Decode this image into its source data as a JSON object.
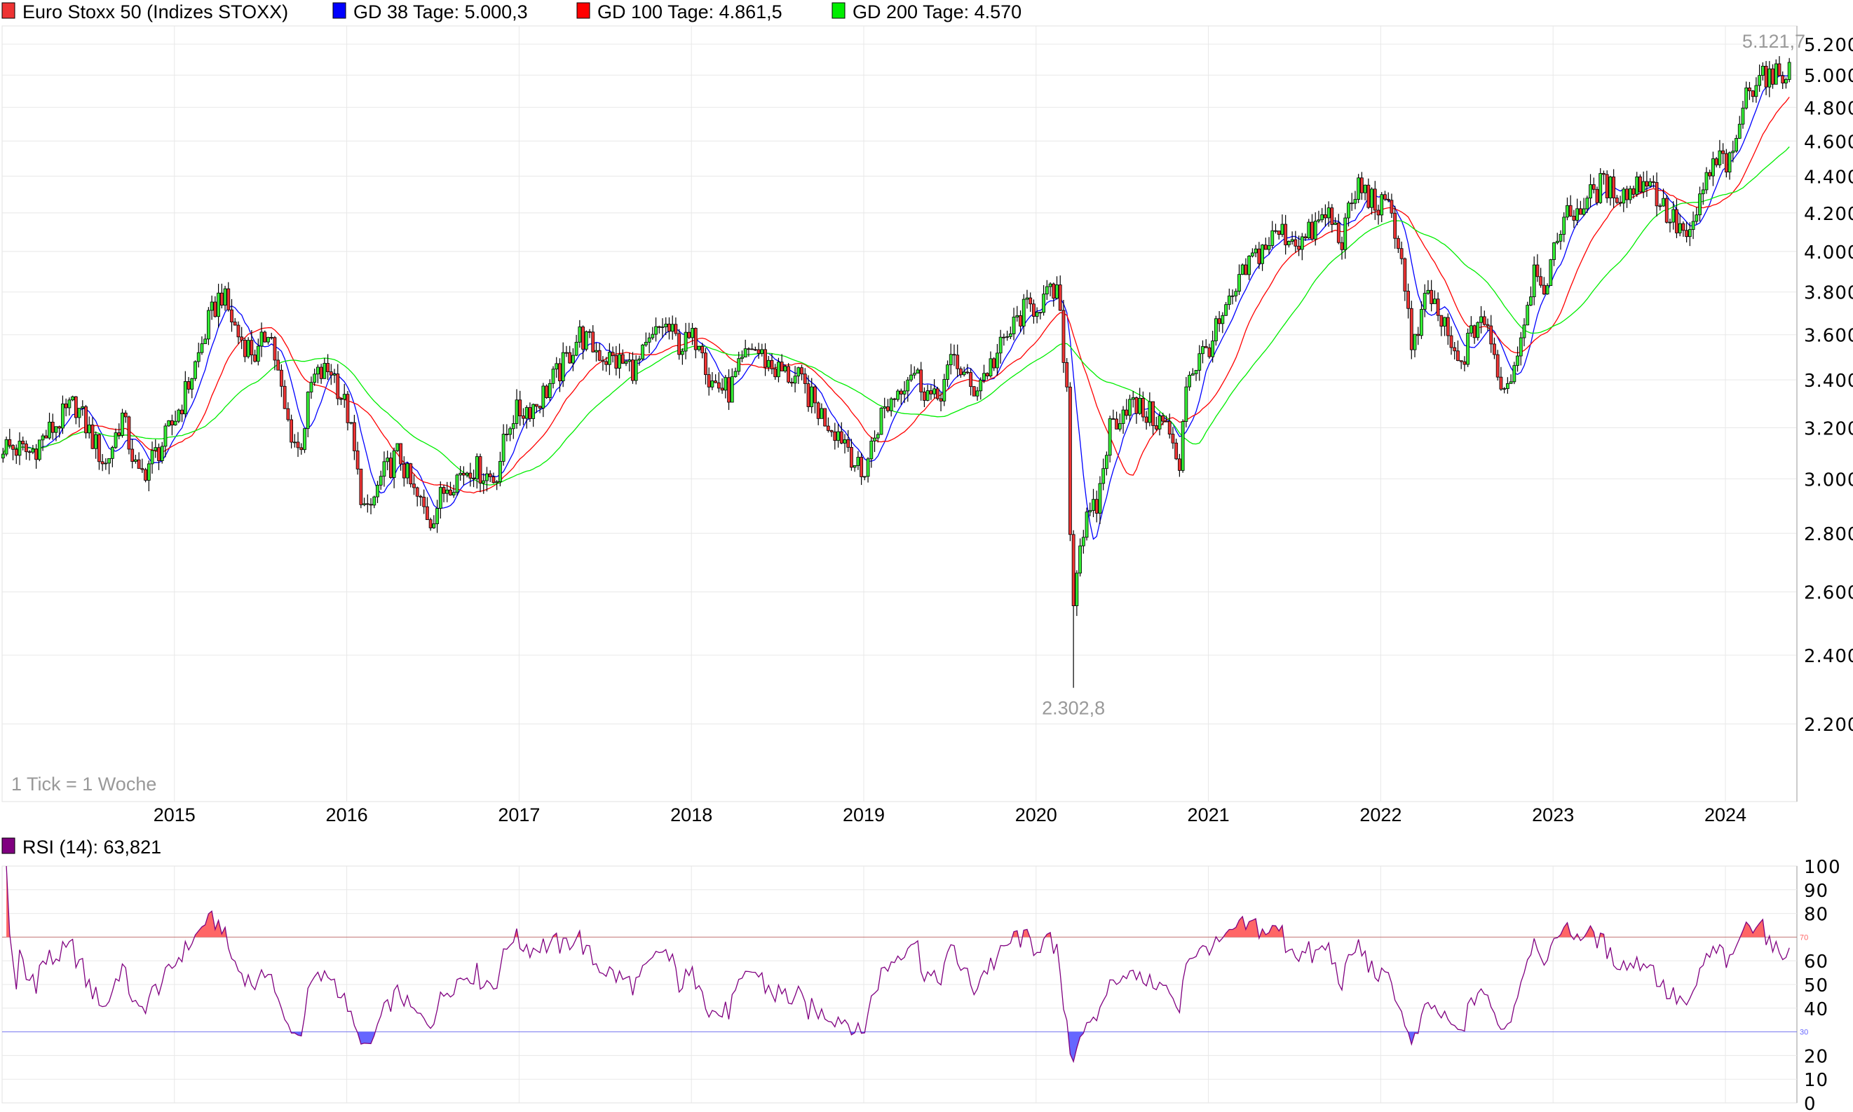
{
  "legend": {
    "main": {
      "label": "Euro Stoxx 50 (Indizes STOXX)",
      "color": "#ee3333"
    },
    "ma38": {
      "label": "GD 38 Tage: 5.000,3",
      "color": "#0000ff",
      "days": 38
    },
    "ma100": {
      "label": "GD 100 Tage: 4.861,5",
      "color": "#ff0000",
      "days": 100
    },
    "ma200": {
      "label": "GD 200 Tage: 4.570",
      "color": "#00ee00",
      "days": 200
    }
  },
  "annotations": {
    "high": "5.121,7",
    "high_value": 5121.7,
    "low": "2.302,8",
    "low_value": 2302.8,
    "tick_note": "1 Tick = 1 Woche"
  },
  "rsi": {
    "label": "RSI (14): 63,821",
    "color": "#800080",
    "period": 14,
    "upper": 70,
    "lower": 30,
    "upper_label": "70",
    "lower_label": "30",
    "ticks": [
      "100",
      "90",
      "80",
      "60",
      "50",
      "40",
      "20",
      "10",
      "0"
    ],
    "upper_color": "#ff6666",
    "lower_color": "#6666ff"
  },
  "chart_data": {
    "type": "candlestick",
    "interval": "weekly",
    "y_scale": "log",
    "ylim": [
      1950,
      5450
    ],
    "y_ticks": [
      2200,
      2400,
      2600,
      2800,
      3000,
      3200,
      3400,
      3600,
      3800,
      4000,
      4200,
      4400,
      4600,
      4800,
      5000,
      5200
    ],
    "y_tick_labels": [
      "2.200",
      "2.400",
      "2.600",
      "2.800",
      "3.000",
      "3.200",
      "3.400",
      "3.600",
      "3.800",
      "4.000",
      "4.200",
      "4.400",
      "4.600",
      "4.800",
      "5.000",
      "5.200"
    ],
    "x_ticks": [
      "2015",
      "2016",
      "2017",
      "2018",
      "2019",
      "2020",
      "2021",
      "2022",
      "2023",
      "2024"
    ],
    "xlim": [
      "2014-01-01",
      "2024-06-01"
    ],
    "grid": true,
    "up_color": "#33ee33",
    "down_color": "#ee3333",
    "approx_closes": [
      [
        "2014-01-03",
        3130
      ],
      [
        "2014-03-01",
        3100
      ],
      [
        "2014-06-05",
        3300
      ],
      [
        "2014-08-08",
        3050
      ],
      [
        "2014-09-12",
        3250
      ],
      [
        "2014-10-17",
        3000
      ],
      [
        "2014-12-12",
        3150
      ],
      [
        "2015-01-16",
        3300
      ],
      [
        "2015-02-20",
        3500
      ],
      [
        "2015-03-13",
        3650
      ],
      [
        "2015-04-10",
        3800
      ],
      [
        "2015-05-15",
        3600
      ],
      [
        "2015-06-26",
        3500
      ],
      [
        "2015-07-20",
        3650
      ],
      [
        "2015-08-24",
        3250
      ],
      [
        "2015-09-22",
        3100
      ],
      [
        "2015-10-20",
        3400
      ],
      [
        "2015-11-30",
        3450
      ],
      [
        "2016-01-04",
        3250
      ],
      [
        "2016-01-25",
        3000
      ],
      [
        "2016-02-12",
        2850
      ],
      [
        "2016-03-14",
        3000
      ],
      [
        "2016-04-20",
        3100
      ],
      [
        "2016-05-20",
        2950
      ],
      [
        "2016-06-27",
        2850
      ],
      [
        "2016-08-01",
        2980
      ],
      [
        "2016-09-20",
        3050
      ],
      [
        "2016-11-10",
        3000
      ],
      [
        "2016-12-16",
        3250
      ],
      [
        "2017-02-06",
        3300
      ],
      [
        "2017-04-01",
        3450
      ],
      [
        "2017-05-08",
        3600
      ],
      [
        "2017-07-01",
        3500
      ],
      [
        "2017-09-05",
        3450
      ],
      [
        "2017-11-01",
        3650
      ],
      [
        "2017-12-10",
        3550
      ],
      [
        "2018-01-22",
        3600
      ],
      [
        "2018-02-06",
        3400
      ],
      [
        "2018-03-22",
        3350
      ],
      [
        "2018-05-08",
        3550
      ],
      [
        "2018-06-25",
        3450
      ],
      [
        "2018-08-15",
        3400
      ],
      [
        "2018-10-05",
        3250
      ],
      [
        "2018-11-25",
        3150
      ],
      [
        "2018-12-27",
        3000
      ],
      [
        "2019-02-06",
        3250
      ],
      [
        "2019-04-12",
        3450
      ],
      [
        "2019-06-01",
        3300
      ],
      [
        "2019-07-12",
        3500
      ],
      [
        "2019-08-18",
        3350
      ],
      [
        "2019-10-08",
        3500
      ],
      [
        "2019-12-01",
        3700
      ],
      [
        "2020-02-14",
        3800
      ],
      [
        "2020-03-06",
        3400
      ],
      [
        "2020-03-17",
        2550
      ],
      [
        "2020-04-06",
        2800
      ],
      [
        "2020-05-10",
        2900
      ],
      [
        "2020-06-05",
        3200
      ],
      [
        "2020-07-12",
        3300
      ],
      [
        "2020-09-02",
        3250
      ],
      [
        "2020-10-08",
        3200
      ],
      [
        "2020-10-30",
        3000
      ],
      [
        "2020-11-13",
        3400
      ],
      [
        "2021-01-01",
        3550
      ],
      [
        "2021-02-08",
        3700
      ],
      [
        "2021-03-30",
        3950
      ],
      [
        "2021-05-30",
        4100
      ],
      [
        "2021-07-20",
        4050
      ],
      [
        "2021-09-12",
        4200
      ],
      [
        "2021-10-08",
        4050
      ],
      [
        "2021-11-14",
        4350
      ],
      [
        "2021-12-20",
        4250
      ],
      [
        "2022-01-26",
        4200
      ],
      [
        "2022-02-25",
        3800
      ],
      [
        "2022-03-07",
        3500
      ],
      [
        "2022-04-12",
        3800
      ],
      [
        "2022-05-20",
        3600
      ],
      [
        "2022-06-14",
        3450
      ],
      [
        "2022-08-01",
        3700
      ],
      [
        "2022-09-20",
        3350
      ],
      [
        "2022-10-15",
        3500
      ],
      [
        "2022-11-25",
        3950
      ],
      [
        "2022-12-20",
        3800
      ],
      [
        "2023-01-15",
        4150
      ],
      [
        "2023-03-08",
        4250
      ],
      [
        "2023-04-12",
        4350
      ],
      [
        "2023-06-03",
        4300
      ],
      [
        "2023-07-20",
        4400
      ],
      [
        "2023-08-28",
        4200
      ],
      [
        "2023-10-20",
        4050
      ],
      [
        "2023-11-15",
        4350
      ],
      [
        "2023-12-20",
        4500
      ],
      [
        "2024-01-15",
        4450
      ],
      [
        "2024-02-05",
        4800
      ],
      [
        "2024-03-15",
        5050
      ],
      [
        "2024-04-08",
        4950
      ],
      [
        "2024-05-05",
        5050
      ],
      [
        "2024-05-20",
        5000
      ]
    ]
  }
}
